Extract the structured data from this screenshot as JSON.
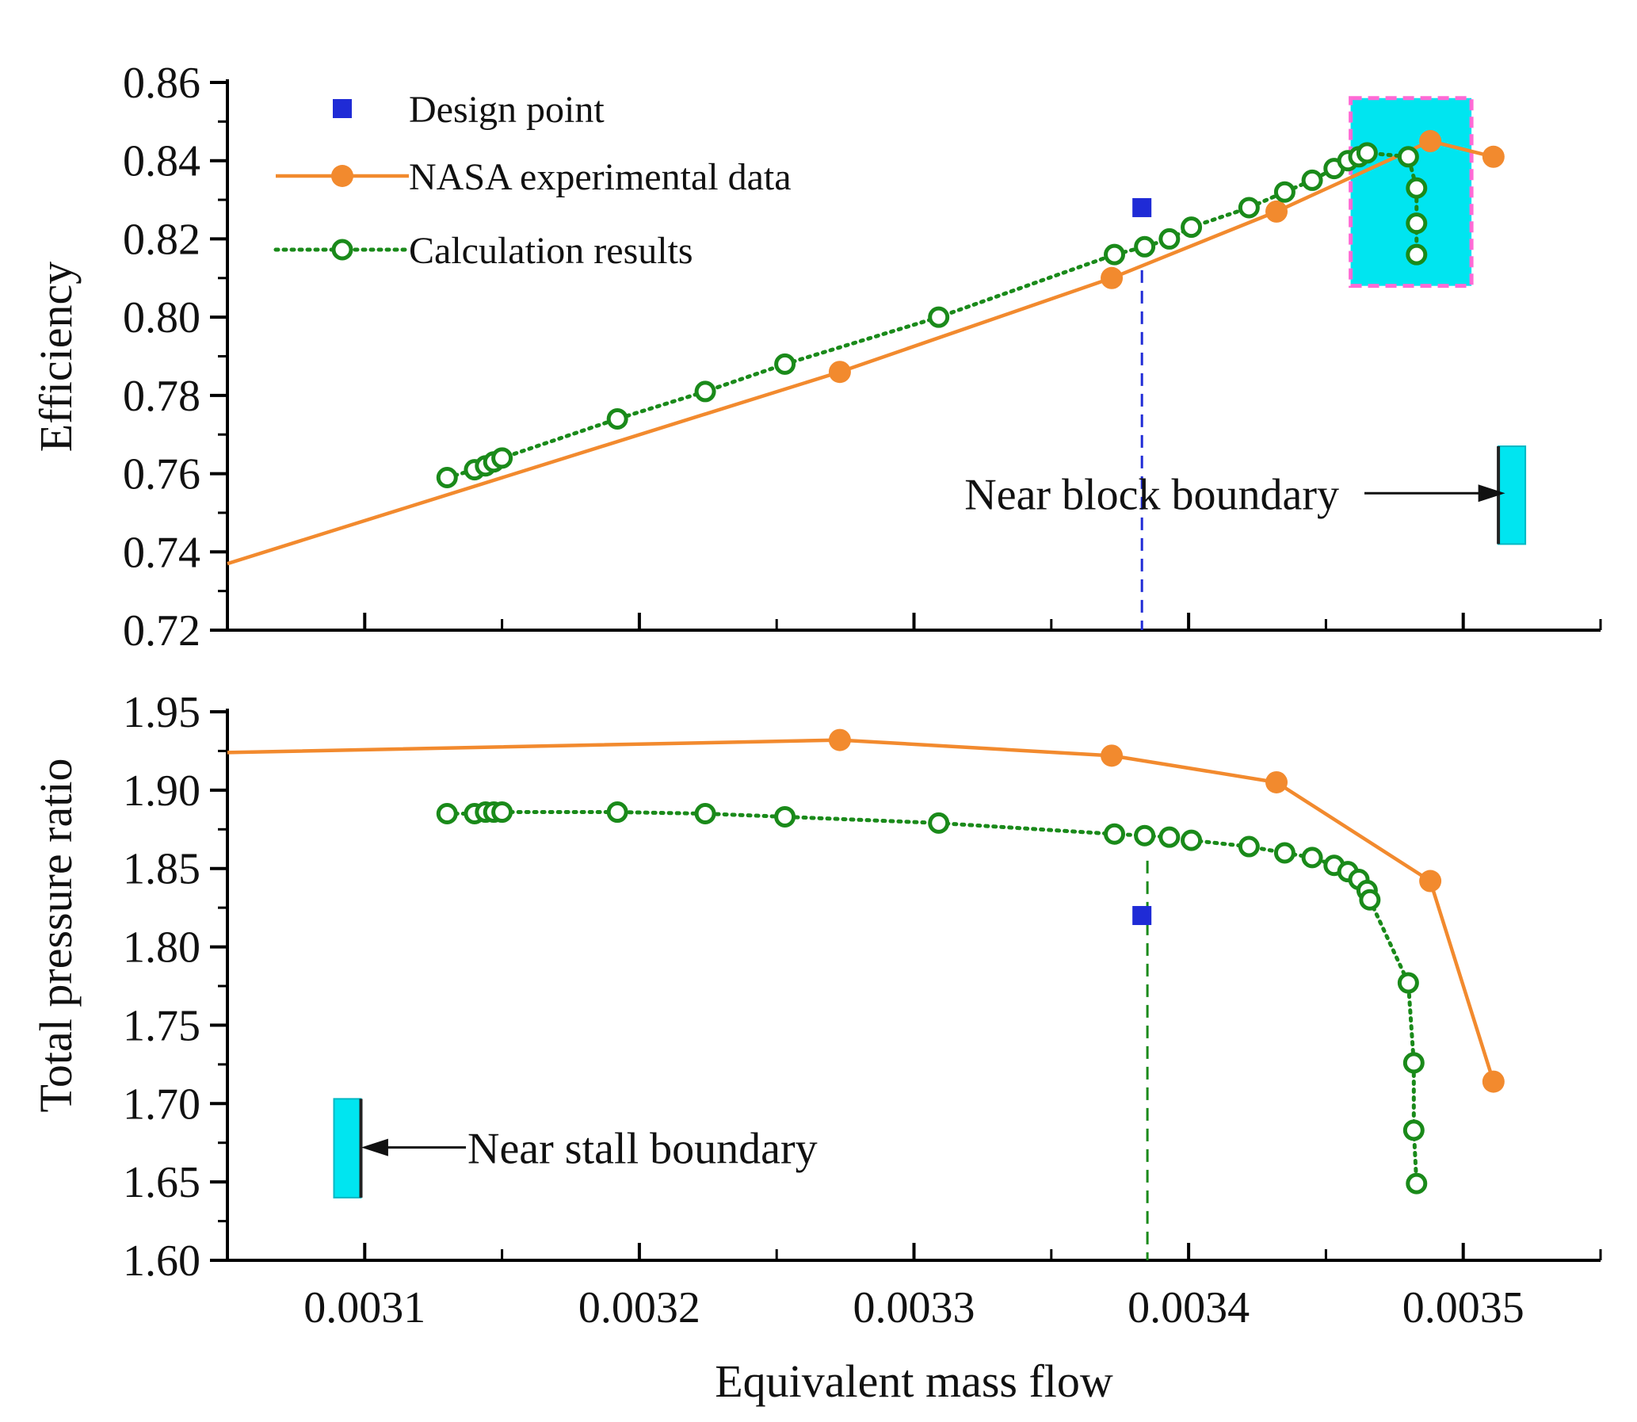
{
  "chart_data": [
    {
      "id": "efficiency",
      "type": "line",
      "ylabel": "Efficiency",
      "xlabel": "",
      "xlim": [
        0.00305,
        0.00355
      ],
      "ylim": [
        0.72,
        0.86
      ],
      "yticks": [
        "0.72",
        "0.74",
        "0.76",
        "0.78",
        "0.80",
        "0.82",
        "0.84",
        "0.86"
      ],
      "xticks": [
        "0.0031",
        "0.0032",
        "0.0033",
        "0.0034",
        "0.0035"
      ],
      "grid": false,
      "legend": {
        "position": "top-left",
        "entries": [
          "Design point",
          "NASA experimental data",
          "Calculation results"
        ]
      },
      "series": [
        {
          "name": "NASA experimental data",
          "color": "#f28a2e",
          "style": "solid-filled-circle",
          "points": [
            [
              0.00305,
              0.737
            ],
            [
              0.003273,
              0.786
            ],
            [
              0.003372,
              0.81
            ],
            [
              0.003432,
              0.827
            ],
            [
              0.003488,
              0.845
            ],
            [
              0.003511,
              0.841
            ]
          ]
        },
        {
          "name": "Calculation results",
          "color": "#1a8a1a",
          "style": "dotted-open-circle",
          "points": [
            [
              0.00313,
              0.759
            ],
            [
              0.00314,
              0.761
            ],
            [
              0.003144,
              0.762
            ],
            [
              0.003147,
              0.763
            ],
            [
              0.00315,
              0.764
            ],
            [
              0.003192,
              0.774
            ],
            [
              0.003224,
              0.781
            ],
            [
              0.003253,
              0.788
            ],
            [
              0.003309,
              0.8
            ],
            [
              0.003373,
              0.816
            ],
            [
              0.003384,
              0.818
            ],
            [
              0.003393,
              0.82
            ],
            [
              0.003401,
              0.823
            ],
            [
              0.003422,
              0.828
            ],
            [
              0.003435,
              0.832
            ],
            [
              0.003445,
              0.835
            ],
            [
              0.003453,
              0.838
            ],
            [
              0.003458,
              0.84
            ],
            [
              0.003462,
              0.841
            ],
            [
              0.003465,
              0.842
            ],
            [
              0.00348,
              0.841
            ],
            [
              0.003483,
              0.833
            ],
            [
              0.003483,
              0.824
            ],
            [
              0.003483,
              0.816
            ]
          ]
        },
        {
          "name": "Design point",
          "color": "#1f2bd6",
          "style": "filled-square",
          "points": [
            [
              0.003383,
              0.828
            ]
          ]
        }
      ],
      "annotations": [
        {
          "text": "Near block boundary",
          "target_x": 0.003517,
          "target_y": 0.755
        }
      ],
      "highlight_region": {
        "x": [
          0.003459,
          0.003503
        ],
        "y": [
          0.808,
          0.856
        ],
        "color": "#00e5f0",
        "border": "#ff6ad5"
      },
      "marker_bar": {
        "x": 0.003518,
        "y": [
          0.742,
          0.767
        ],
        "color": "#00e5f0"
      },
      "reference_line": {
        "x": 0.003383,
        "y": [
          0.72,
          0.812
        ],
        "color": "#1f2bd6"
      }
    },
    {
      "id": "pressure",
      "type": "line",
      "ylabel": "Total pressure ratio",
      "xlabel": "Equivalent mass flow",
      "xlim": [
        0.00305,
        0.00355
      ],
      "ylim": [
        1.6,
        1.95
      ],
      "yticks": [
        "1.60",
        "1.65",
        "1.70",
        "1.75",
        "1.80",
        "1.85",
        "1.90",
        "1.95"
      ],
      "xticks": [
        "0.0031",
        "0.0032",
        "0.0033",
        "0.0034",
        "0.0035"
      ],
      "grid": false,
      "series": [
        {
          "name": "NASA experimental data",
          "color": "#f28a2e",
          "style": "solid-filled-circle",
          "points": [
            [
              0.00305,
              1.924
            ],
            [
              0.003273,
              1.932
            ],
            [
              0.003372,
              1.922
            ],
            [
              0.003432,
              1.905
            ],
            [
              0.003488,
              1.842
            ],
            [
              0.003511,
              1.714
            ]
          ]
        },
        {
          "name": "Calculation results",
          "color": "#1a8a1a",
          "style": "dotted-open-circle",
          "points": [
            [
              0.00313,
              1.885
            ],
            [
              0.00314,
              1.885
            ],
            [
              0.003144,
              1.886
            ],
            [
              0.003147,
              1.886
            ],
            [
              0.00315,
              1.886
            ],
            [
              0.003192,
              1.886
            ],
            [
              0.003224,
              1.885
            ],
            [
              0.003253,
              1.883
            ],
            [
              0.003309,
              1.879
            ],
            [
              0.003373,
              1.872
            ],
            [
              0.003384,
              1.871
            ],
            [
              0.003393,
              1.87
            ],
            [
              0.003401,
              1.868
            ],
            [
              0.003422,
              1.864
            ],
            [
              0.003435,
              1.86
            ],
            [
              0.003445,
              1.857
            ],
            [
              0.003453,
              1.852
            ],
            [
              0.003458,
              1.848
            ],
            [
              0.003462,
              1.843
            ],
            [
              0.003465,
              1.836
            ],
            [
              0.003466,
              1.83
            ],
            [
              0.00348,
              1.777
            ],
            [
              0.003482,
              1.726
            ],
            [
              0.003482,
              1.683
            ],
            [
              0.003483,
              1.649
            ]
          ]
        },
        {
          "name": "Design point",
          "color": "#1f2bd6",
          "style": "filled-square",
          "points": [
            [
              0.003383,
              1.82
            ]
          ]
        }
      ],
      "annotations": [
        {
          "text": "Near stall boundary",
          "target_x": 0.003097,
          "target_y": 1.672
        }
      ],
      "marker_bar": {
        "x": 0.003094,
        "y": [
          1.64,
          1.703
        ],
        "color": "#00e5f0"
      },
      "reference_line": {
        "x": 0.003385,
        "y": [
          1.6,
          1.855
        ],
        "color": "#1a8a1a"
      }
    }
  ]
}
